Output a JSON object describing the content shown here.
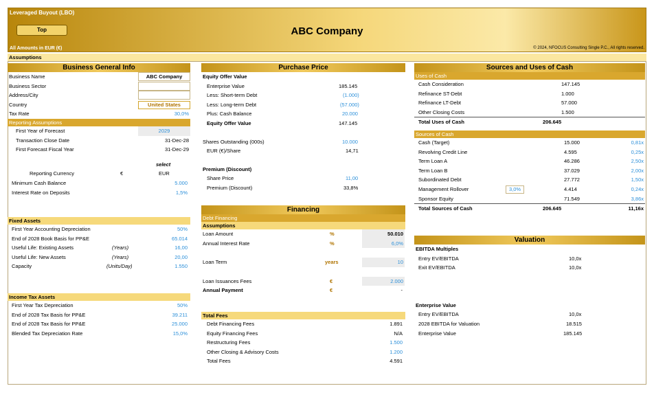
{
  "banner": {
    "title": "Leveraged Buyout (LBO)",
    "top_button": "Top",
    "company": "ABC Company",
    "amounts": "All Amounts in  EUR (€)",
    "copyright": "© 2024, NFOCUS Consulting Single P.C., All rights reserved."
  },
  "assumptions_label": "Assumptions",
  "bgi": {
    "title": "Business General Info",
    "name_label": "Business Name",
    "name_value": "ABC Company",
    "sector_label": "Business Sector",
    "address_label": "Address/City",
    "country_label": "Country",
    "country_value": "United States",
    "tax_label": "Tax Rate",
    "tax_value": "30,0%"
  },
  "reporting": {
    "title": "Reporting Assumptions",
    "fy_label": "First Year of Forecast",
    "fy_value": "2029",
    "close_label": "Transaction Close Date",
    "close_value": "31-Dec-28",
    "ffy_label": "First Forecast Fiscal Year",
    "ffy_value": "31-Dec-29",
    "select": "select",
    "cur_label": "Reporting Currency",
    "cur_symbol": "€",
    "cur_value": "EUR",
    "mincash_label": "Minimum Cash Balance",
    "mincash_value": "5.000",
    "int_label": "Interest Rate on Deposits",
    "int_value": "1,5%"
  },
  "fixed": {
    "title": "Fixed Assets",
    "dep_label": "First Year Accounting Depreciation",
    "dep_value": "50%",
    "book_label": "End of 2028 Book Basis for PP&E",
    "book_value": "65.014",
    "ule_label": "Useful Life: Existing Assets",
    "ule_unit": "(Years)",
    "ule_value": "16,00",
    "uln_label": "Useful Life: New Assets",
    "uln_unit": "(Years)",
    "uln_value": "20,00",
    "cap_label": "Capacity",
    "cap_unit": "(Units/Day)",
    "cap_value": "1.550"
  },
  "itax": {
    "title": "Income Tax Assets",
    "dep_label": "First Year Tax Depreciation",
    "dep_value": "50%",
    "t1_label": "End of 2028 Tax Basis for PP&E",
    "t1_value": "39.211",
    "t2_label": "End of 2028 Tax Basis for PP&E",
    "t2_value": "25.000",
    "bl_label": "Blended Tax Depreciation Rate",
    "bl_value": "15,0%"
  },
  "pp": {
    "title": "Purchase Price",
    "eov": "Equity Offer Value",
    "ev_label": "Enterprise Value",
    "ev_value": "185.145",
    "std_label": "Less: Short-term Debt",
    "std_value": "(1.000)",
    "ltd_label": "Less: Long-term Debt",
    "ltd_value": "(57.000)",
    "cash_label": "Plus: Cash Balance",
    "cash_value": "20.000",
    "eov_label": "Equity Offer Value",
    "eov_value": "147.145",
    "so_label": "Shares Outstanding (000s)",
    "so_value": "10.000",
    "eps_label": "EUR (€)/Share",
    "eps_value": "14,71",
    "prem_title": "Premium (Discount)",
    "sp_label": "Share Price",
    "sp_value": "11,00",
    "pd_label": "Premium (Discount)",
    "pd_value": "33,8%"
  },
  "fin": {
    "title": "Financing",
    "debt": "Debt Financing",
    "assump": "Assumptions",
    "loan_label": "Loan Amount",
    "loan_unit": "%",
    "loan_value": "50.010",
    "rate_label": "Annual Interest Rate",
    "rate_unit": "%",
    "rate_value": "6,0%",
    "term_label": "Loan Term",
    "term_unit": "years",
    "term_value": "10",
    "fees_label": "Loan Issuances Fees",
    "fees_unit": "€",
    "fees_value": "2.000",
    "pay_label": "Annual Payment",
    "pay_unit": "€",
    "pay_value": "-"
  },
  "tf": {
    "title": "Total Fees",
    "dff_label": "Debt Financing Fees",
    "dff_value": "1.891",
    "eff_label": "Equity Financing Fees",
    "eff_value": "N/A",
    "rf_label": "Restructuring Fees",
    "rf_value": "1.500",
    "oc_label": "Other Closing & Advisory Costs",
    "oc_value": "1.200",
    "tot_label": "Total Fees",
    "tot_value": "4.591"
  },
  "su": {
    "title": "Sources and Uses of Cash",
    "uses": "Uses of Cash",
    "uses_rows": [
      {
        "label": "Cash Consideration",
        "value": "147.145"
      },
      {
        "label": "Refinance ST-Debt",
        "value": "1.000"
      },
      {
        "label": "Refinance LT-Debt",
        "value": "57.000"
      },
      {
        "label": "Other Closing Costs",
        "value": "1.500"
      }
    ],
    "uses_total_label": "Total Uses of Cash",
    "uses_total_value": "206.645",
    "sources": "Sources of Cash",
    "src_rows": [
      {
        "label": "Cash (Target)",
        "value": "15.000",
        "mult": "0,81x"
      },
      {
        "label": "Revolving Credit Line",
        "value": "4.595",
        "mult": "0,25x"
      },
      {
        "label": "Term Loan A",
        "value": "46.286",
        "mult": "2,50x"
      },
      {
        "label": "Term Loan B",
        "value": "37.029",
        "mult": "2,00x"
      },
      {
        "label": "Subordinated Debt",
        "value": "27.772",
        "mult": "1,50x"
      },
      {
        "label": "Management Rollover",
        "pct": "3,0%",
        "value": "4.414",
        "mult": "0,24x"
      },
      {
        "label": "Sponsor Equity",
        "value": "71.549",
        "mult": "3,86x"
      }
    ],
    "src_total_label": "Total Sources of Cash",
    "src_total_value": "206.645",
    "src_total_mult": "11,16x"
  },
  "val": {
    "title": "Valuation",
    "mult_title": "EBITDA Multiples",
    "entry_label": "Entry EV/EBITDA",
    "entry_value": "10,0x",
    "exit_label": "Exit EV/EBITDA",
    "exit_value": "10,0x",
    "ev_title": "Enterprise Value",
    "e2_label": "Entry EV/EBITDA",
    "e2_value": "10,0x",
    "eb_label": "2028 EBITDA for Valuation",
    "eb_value": "18.515",
    "evv_label": "Enterprise Value",
    "evv_value": "185.145"
  }
}
